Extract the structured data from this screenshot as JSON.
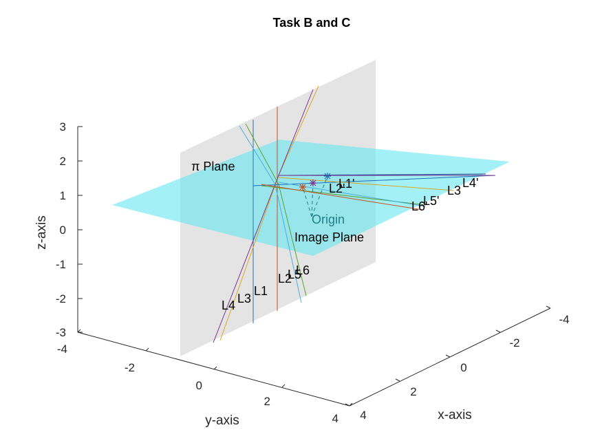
{
  "chart_data": {
    "type": "line3d",
    "title": "Task B and C",
    "xlabel": "x-axis",
    "ylabel": "y-axis",
    "zlabel": "z-axis",
    "xlim": [
      -4,
      4
    ],
    "ylim": [
      -4,
      4
    ],
    "zlim": [
      -3,
      3
    ],
    "x_ticks": [
      "-4",
      "-2",
      "0",
      "2",
      "4"
    ],
    "y_ticks": [
      "-4",
      "-2",
      "0",
      "2",
      "4"
    ],
    "z_ticks": [
      "-3",
      "-2",
      "-1",
      "0",
      "1",
      "2",
      "3"
    ],
    "planes": {
      "pi_plane_label": "π Plane",
      "image_plane_label": "Image Plane",
      "pi_plane_color": "#66e8f2",
      "image_plane_color": "#d9d9d9"
    },
    "origin_label": "Origin",
    "lines": [
      {
        "label": "L1",
        "color": "#1f6fb4"
      },
      {
        "label": "L2",
        "color": "#c8501f"
      },
      {
        "label": "L3",
        "color": "#d8a81f"
      },
      {
        "label": "L4",
        "color": "#7e2f8e"
      },
      {
        "label": "L5",
        "color": "#5a9e2f"
      },
      {
        "label": "L6",
        "color": "#4aaedc"
      }
    ],
    "projected_labels": [
      "L1'",
      "L2'",
      "L3'",
      "L4'",
      "L5'",
      "L6'"
    ],
    "projected_label_prefix": {
      "l2": "L2",
      "l3": "L3",
      "l6": "L6"
    },
    "grid": false
  }
}
